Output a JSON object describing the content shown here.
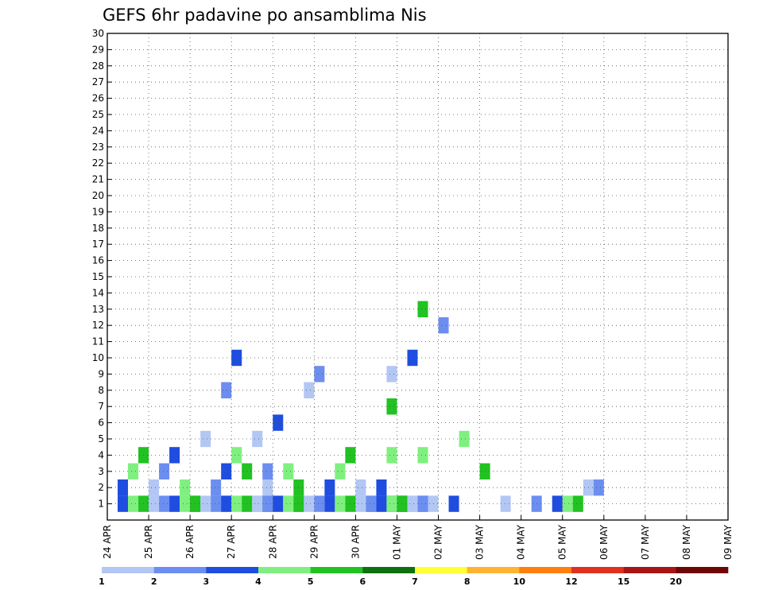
{
  "chart_data": {
    "type": "heatmap",
    "title": "GEFS 6hr padavine po ansamblima Nis",
    "x_tick_labels": [
      "24 APR",
      "25 APR",
      "26 APR",
      "27 APR",
      "28 APR",
      "29 APR",
      "30 APR",
      "01 MAY",
      "02 MAY",
      "03 MAY",
      "04 MAY",
      "05 MAY",
      "06 MAY",
      "07 MAY",
      "08 MAY",
      "09 MAY"
    ],
    "y_tick_labels": [
      "1",
      "2",
      "3",
      "4",
      "5",
      "6",
      "7",
      "8",
      "9",
      "10",
      "11",
      "12",
      "13",
      "14",
      "15",
      "16",
      "17",
      "18",
      "19",
      "20",
      "21",
      "22",
      "23",
      "24",
      "25",
      "26",
      "27",
      "28",
      "29",
      "30"
    ],
    "x_range": [
      0,
      60
    ],
    "y_range": [
      0,
      30
    ],
    "grid": true,
    "legend_position": "bottom",
    "legend_labels": [
      "1",
      "2",
      "3",
      "4",
      "5",
      "6",
      "7",
      "8",
      "10",
      "12",
      "15",
      "20"
    ],
    "legend_colors": [
      "#b3c7f5",
      "#6b8ef0",
      "#1f4de0",
      "#7ff07f",
      "#21c221",
      "#0e700e",
      "#ffff33",
      "#ffb332",
      "#ff7f0e",
      "#e0301e",
      "#a61616",
      "#6e0606"
    ],
    "cells": [
      [
        11,
        1
      ],
      [
        11,
        8
      ],
      [
        12,
        10
      ],
      [
        14,
        1
      ],
      [
        15,
        1
      ],
      [
        15,
        2
      ],
      [
        18,
        1
      ],
      [
        27,
        1
      ],
      [
        27,
        4
      ],
      [
        27,
        7
      ],
      [
        27,
        9
      ],
      [
        28,
        1
      ],
      [
        29,
        10
      ],
      [
        30,
        4
      ],
      [
        30,
        13
      ],
      [
        31,
        1
      ],
      [
        32,
        12
      ],
      [
        33,
        1
      ],
      [
        34,
        5
      ],
      [
        36,
        3
      ],
      [
        38,
        1
      ],
      [
        41,
        1
      ],
      [
        43,
        1
      ],
      [
        44,
        1
      ],
      [
        45,
        1
      ],
      [
        46,
        2
      ],
      [
        47,
        2
      ],
      [
        1,
        1
      ],
      [
        2,
        1
      ],
      [
        3,
        1
      ],
      [
        4,
        1
      ],
      [
        5,
        1
      ],
      [
        6,
        1
      ],
      [
        7,
        1
      ],
      [
        8,
        1
      ],
      [
        9,
        1
      ],
      [
        10,
        1
      ],
      [
        11,
        1
      ],
      [
        12,
        1
      ],
      [
        13,
        1
      ],
      [
        14,
        1
      ],
      [
        15,
        1
      ],
      [
        16,
        1
      ],
      [
        17,
        1
      ],
      [
        18,
        1
      ],
      [
        19,
        1
      ],
      [
        20,
        1
      ],
      [
        21,
        1
      ],
      [
        22,
        1
      ],
      [
        23,
        1
      ],
      [
        24,
        1
      ],
      [
        25,
        1
      ],
      [
        26,
        1
      ],
      [
        27,
        1
      ],
      [
        28,
        1
      ],
      [
        29,
        1
      ],
      [
        30,
        1
      ],
      [
        1,
        2
      ],
      [
        2,
        3
      ],
      [
        3,
        4
      ],
      [
        4,
        2
      ],
      [
        5,
        3
      ],
      [
        6,
        4
      ],
      [
        7,
        2
      ],
      [
        8,
        1
      ],
      [
        9,
        5
      ],
      [
        10,
        2
      ],
      [
        11,
        3
      ],
      [
        12,
        4
      ],
      [
        13,
        3
      ],
      [
        14,
        5
      ],
      [
        15,
        3
      ],
      [
        16,
        6
      ],
      [
        17,
        3
      ],
      [
        18,
        2
      ],
      [
        19,
        8
      ],
      [
        20,
        9
      ],
      [
        21,
        2
      ],
      [
        22,
        3
      ],
      [
        23,
        4
      ],
      [
        24,
        2
      ],
      [
        25,
        1
      ],
      [
        26,
        2
      ],
      [
        27,
        1
      ],
      [
        28,
        1
      ],
      [
        29,
        1
      ],
      [
        30,
        1
      ]
    ]
  }
}
